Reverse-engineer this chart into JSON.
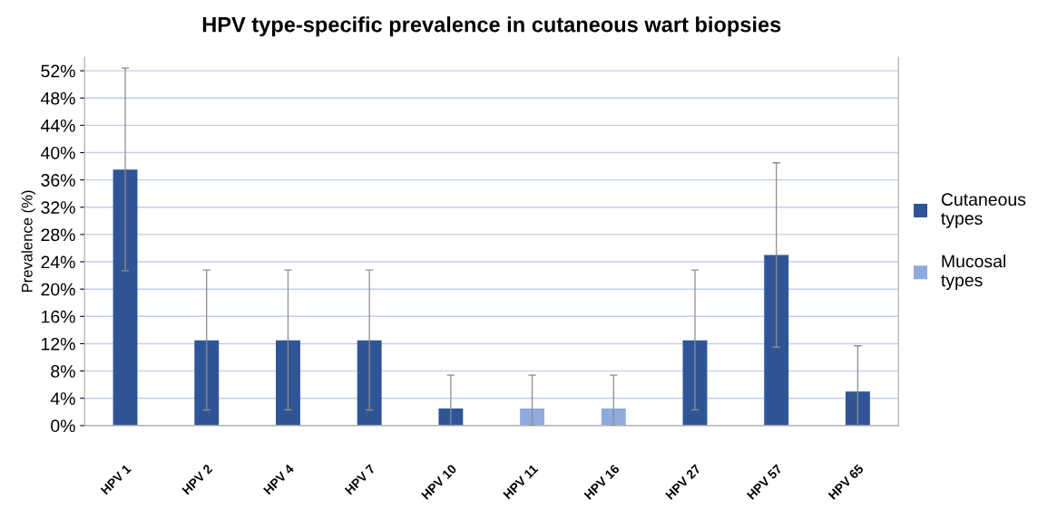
{
  "chart_data": {
    "type": "bar",
    "title": "HPV type-specific prevalence in cutaneous wart biopsies",
    "ylabel": "Prevalence (%)",
    "categories": [
      "HPV 1",
      "HPV 2",
      "HPV 4",
      "HPV 7",
      "HPV 10",
      "HPV 11",
      "HPV 16",
      "HPV 27",
      "HPV 57",
      "HPV 65"
    ],
    "series": [
      {
        "name": "Cutaneous types",
        "color": "#2f5597",
        "values": [
          37.5,
          12.5,
          12.5,
          12.5,
          2.5,
          null,
          null,
          12.5,
          25,
          5
        ],
        "errors": [
          [
            22.7,
            52.4
          ],
          [
            2.3,
            22.8
          ],
          [
            2.3,
            22.8
          ],
          [
            2.3,
            22.8
          ],
          [
            0,
            7.4
          ],
          null,
          null,
          [
            2.3,
            22.8
          ],
          [
            11.5,
            38.5
          ],
          [
            0,
            11.7
          ]
        ]
      },
      {
        "name": "Mucosal types",
        "color": "#8faadc",
        "values": [
          null,
          null,
          null,
          null,
          null,
          2.5,
          2.5,
          null,
          null,
          null
        ],
        "errors": [
          null,
          null,
          null,
          null,
          null,
          [
            0,
            7.4
          ],
          [
            0,
            7.4
          ],
          null,
          null,
          null
        ]
      }
    ],
    "ylim": [
      0,
      54
    ],
    "yticks": [
      {
        "value": 0,
        "label": "0%"
      },
      {
        "value": 4,
        "label": "4%"
      },
      {
        "value": 8,
        "label": "8%"
      },
      {
        "value": 12,
        "label": "12%"
      },
      {
        "value": 16,
        "label": "16%"
      },
      {
        "value": 20,
        "label": "20%"
      },
      {
        "value": 24,
        "label": "24%"
      },
      {
        "value": 28,
        "label": "28%"
      },
      {
        "value": 32,
        "label": "32%"
      },
      {
        "value": 36,
        "label": "36%"
      },
      {
        "value": 40,
        "label": "40%"
      },
      {
        "value": 44,
        "label": "44%"
      },
      {
        "value": 48,
        "label": "48%"
      },
      {
        "value": 52,
        "label": "52%"
      }
    ],
    "grid": "y",
    "legend": "right"
  }
}
